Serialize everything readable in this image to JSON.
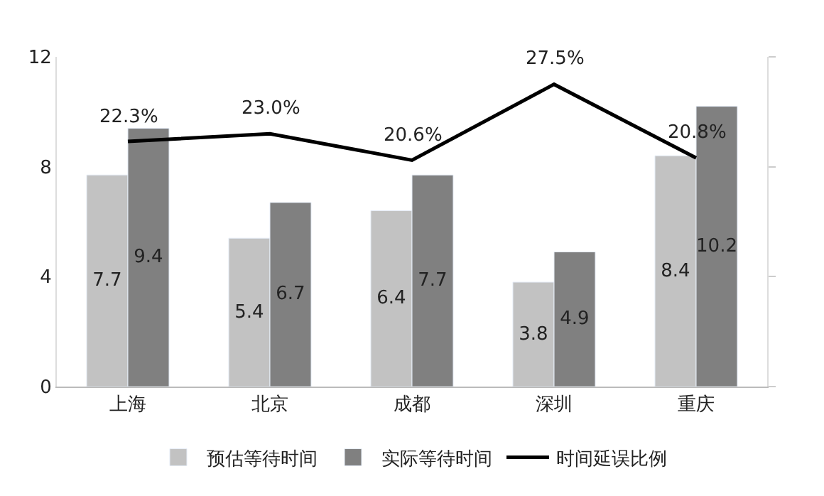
{
  "chart_data": {
    "type": "bar",
    "categories": [
      "上海",
      "北京",
      "成都",
      "深圳",
      "重庆"
    ],
    "series": [
      {
        "name": "预估等待时间",
        "color": "#c2c2c2",
        "values": [
          7.7,
          5.4,
          6.4,
          3.8,
          8.4
        ]
      },
      {
        "name": "实际等待时间",
        "color": "#808080",
        "values": [
          9.4,
          6.7,
          7.7,
          4.9,
          10.2
        ]
      },
      {
        "name": "时间延误比例",
        "color": "#000000",
        "type": "line",
        "axis": "y2",
        "values": [
          22.3,
          23.0,
          20.6,
          27.5,
          20.8
        ],
        "value_labels": [
          "22.3%",
          "23.0%",
          "20.6%",
          "27.5%",
          "20.8%"
        ]
      }
    ],
    "data_labels": true,
    "ylim": [
      0,
      12
    ],
    "yticks": [
      0,
      4,
      8,
      12
    ],
    "y2lim": [
      0,
      30
    ],
    "y2ticks": [
      {
        "value": 0,
        "label": null
      },
      {
        "value": 10,
        "label": null
      },
      {
        "value": 20,
        "label": null
      },
      {
        "value": 30,
        "label": null
      }
    ],
    "legend": "bottom",
    "marker": "none",
    "line_style": "solid"
  }
}
